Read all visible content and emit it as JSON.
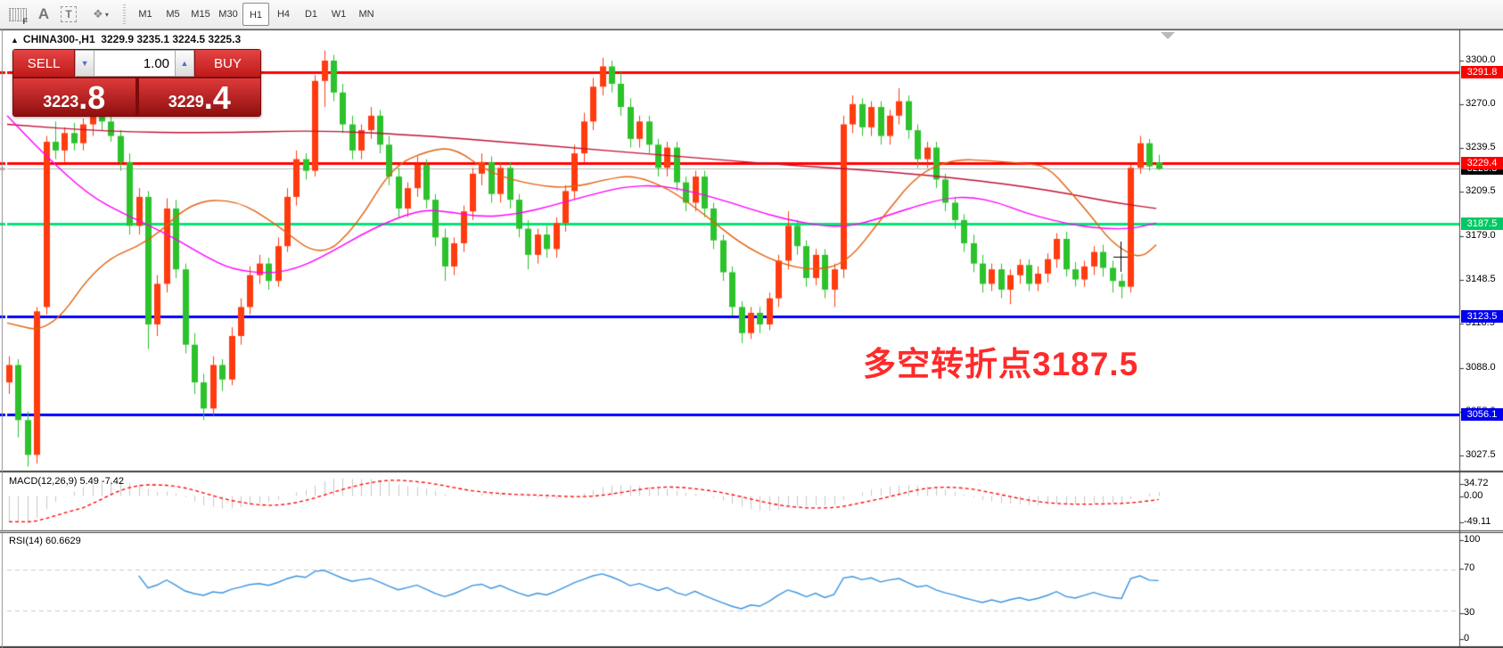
{
  "toolbar": {
    "tools": [
      {
        "name": "grid-f-tool",
        "label": "F"
      },
      {
        "name": "text-label-tool",
        "label": "A"
      },
      {
        "name": "text-box-tool",
        "label": "T"
      },
      {
        "name": "shapes-tool",
        "label": "❖",
        "caret": "▾"
      }
    ],
    "timeframes": [
      {
        "label": "M1",
        "active": false
      },
      {
        "label": "M5",
        "active": false
      },
      {
        "label": "M15",
        "active": false
      },
      {
        "label": "M30",
        "active": false
      },
      {
        "label": "H1",
        "active": true
      },
      {
        "label": "H4",
        "active": false
      },
      {
        "label": "D1",
        "active": false
      },
      {
        "label": "W1",
        "active": false
      },
      {
        "label": "MN",
        "active": false
      }
    ]
  },
  "chart": {
    "title": {
      "collapse_arrow": "▲",
      "symbol_period": "CHINA300-,H1",
      "ohlc": "3229.9 3235.1 3224.5 3225.3"
    },
    "trade_panel": {
      "sell_label": "SELL",
      "buy_label": "BUY",
      "volume": "1.00",
      "spinner_down": "▼",
      "spinner_up": "▲",
      "sell_price_main": "3223",
      "sell_price_big": ".8",
      "buy_price_main": "3229",
      "buy_price_big": ".4"
    },
    "annotation": {
      "text": "多空转折点3187.5",
      "color": "#ff2a2a"
    }
  },
  "macd": {
    "label": "MACD(12,26,9) 5.49 -7.42",
    "ticks": [
      "34.72",
      "0.00",
      "-49.11"
    ]
  },
  "rsi": {
    "label": "RSI(14) 60.6629",
    "ticks": [
      "100",
      "70",
      "30",
      "0"
    ]
  },
  "colors": {
    "candle_up": "#ff3b0f",
    "candle_down": "#2cc22c",
    "ma_slow": "#c11236",
    "ma_mid": "#ff00ff",
    "ma_fast": "#e2610c",
    "line_red": "#ff0000",
    "line_green": "#00e676",
    "line_blue": "#0000ff",
    "line_gray": "#b9b9b9",
    "badge_black": "#000000",
    "macd_hist": "#c8c8c8",
    "macd_signal": "#ff0000",
    "rsi_line": "#3b94e0",
    "rsi_level": "#cccccc"
  },
  "chart_data": {
    "type": "candlestick",
    "symbol": "CHINA300-",
    "period": "H1",
    "price_axis_ticks": [
      3300.0,
      3270.0,
      3239.5,
      3209.5,
      3179.0,
      3148.5,
      3118.5,
      3088.0,
      3058.0,
      3027.5
    ],
    "ylim": [
      3010,
      3310
    ],
    "levels": [
      {
        "price": 3225.3,
        "color": "#b9b9b9",
        "width": 1,
        "badge": "#000000"
      },
      {
        "price": 3291.8,
        "color": "#ff0000",
        "width": 3,
        "badge": "#ff0000"
      },
      {
        "price": 3229.4,
        "color": "#ff0000",
        "width": 3,
        "badge": "#ff0000"
      },
      {
        "price": 3187.5,
        "color": "#00e676",
        "width": 3,
        "badge": "#00c964"
      },
      {
        "price": 3123.5,
        "color": "#0000ff",
        "width": 3,
        "badge": "#0000ee"
      },
      {
        "price": 3056.1,
        "color": "#0000ff",
        "width": 3,
        "badge": "#0000ee"
      }
    ],
    "ohlc": [
      [
        3078,
        3096,
        3070,
        3090
      ],
      [
        3090,
        3094,
        3040,
        3052
      ],
      [
        3052,
        3058,
        3020,
        3028
      ],
      [
        3028,
        3130,
        3022,
        3127
      ],
      [
        3130,
        3248,
        3125,
        3244
      ],
      [
        3244,
        3258,
        3232,
        3238
      ],
      [
        3238,
        3254,
        3230,
        3250
      ],
      [
        3250,
        3257,
        3238,
        3243
      ],
      [
        3243,
        3260,
        3238,
        3256
      ],
      [
        3256,
        3266,
        3248,
        3262
      ],
      [
        3262,
        3270,
        3252,
        3258
      ],
      [
        3258,
        3265,
        3244,
        3248
      ],
      [
        3248,
        3252,
        3224,
        3230
      ],
      [
        3230,
        3236,
        3180,
        3186
      ],
      [
        3186,
        3212,
        3180,
        3206
      ],
      [
        3206,
        3210,
        3101,
        3118
      ],
      [
        3118,
        3152,
        3110,
        3146
      ],
      [
        3146,
        3205,
        3140,
        3198
      ],
      [
        3198,
        3204,
        3150,
        3156
      ],
      [
        3156,
        3160,
        3098,
        3104
      ],
      [
        3104,
        3112,
        3070,
        3078
      ],
      [
        3078,
        3084,
        3052,
        3060
      ],
      [
        3060,
        3096,
        3055,
        3090
      ],
      [
        3090,
        3094,
        3072,
        3080
      ],
      [
        3080,
        3116,
        3076,
        3110
      ],
      [
        3110,
        3136,
        3104,
        3130
      ],
      [
        3130,
        3158,
        3125,
        3152
      ],
      [
        3152,
        3166,
        3146,
        3160
      ],
      [
        3160,
        3164,
        3142,
        3148
      ],
      [
        3148,
        3178,
        3144,
        3172
      ],
      [
        3172,
        3212,
        3168,
        3206
      ],
      [
        3206,
        3238,
        3200,
        3232
      ],
      [
        3232,
        3236,
        3218,
        3224
      ],
      [
        3224,
        3290,
        3220,
        3286
      ],
      [
        3286,
        3307,
        3268,
        3300
      ],
      [
        3300,
        3304,
        3272,
        3278
      ],
      [
        3278,
        3284,
        3250,
        3256
      ],
      [
        3256,
        3262,
        3232,
        3238
      ],
      [
        3238,
        3256,
        3232,
        3252
      ],
      [
        3252,
        3268,
        3246,
        3262
      ],
      [
        3262,
        3266,
        3236,
        3242
      ],
      [
        3242,
        3248,
        3214,
        3220
      ],
      [
        3220,
        3226,
        3192,
        3198
      ],
      [
        3198,
        3216,
        3192,
        3212
      ],
      [
        3212,
        3234,
        3206,
        3228
      ],
      [
        3228,
        3232,
        3198,
        3204
      ],
      [
        3204,
        3208,
        3172,
        3178
      ],
      [
        3178,
        3184,
        3148,
        3158
      ],
      [
        3158,
        3178,
        3152,
        3174
      ],
      [
        3174,
        3200,
        3168,
        3196
      ],
      [
        3196,
        3226,
        3190,
        3222
      ],
      [
        3222,
        3236,
        3214,
        3230
      ],
      [
        3230,
        3234,
        3202,
        3208
      ],
      [
        3208,
        3230,
        3202,
        3226
      ],
      [
        3226,
        3230,
        3198,
        3204
      ],
      [
        3204,
        3208,
        3178,
        3184
      ],
      [
        3184,
        3190,
        3156,
        3166
      ],
      [
        3166,
        3184,
        3160,
        3180
      ],
      [
        3180,
        3186,
        3164,
        3170
      ],
      [
        3170,
        3192,
        3164,
        3188
      ],
      [
        3188,
        3214,
        3182,
        3210
      ],
      [
        3210,
        3242,
        3204,
        3236
      ],
      [
        3236,
        3264,
        3230,
        3258
      ],
      [
        3258,
        3288,
        3252,
        3282
      ],
      [
        3282,
        3302,
        3276,
        3296
      ],
      [
        3296,
        3300,
        3278,
        3284
      ],
      [
        3284,
        3292,
        3262,
        3268
      ],
      [
        3268,
        3274,
        3240,
        3246
      ],
      [
        3246,
        3262,
        3240,
        3258
      ],
      [
        3258,
        3262,
        3236,
        3242
      ],
      [
        3242,
        3246,
        3220,
        3226
      ],
      [
        3226,
        3244,
        3220,
        3240
      ],
      [
        3240,
        3244,
        3210,
        3216
      ],
      [
        3216,
        3220,
        3196,
        3202
      ],
      [
        3202,
        3224,
        3196,
        3220
      ],
      [
        3220,
        3224,
        3192,
        3198
      ],
      [
        3198,
        3202,
        3170,
        3176
      ],
      [
        3176,
        3180,
        3148,
        3154
      ],
      [
        3154,
        3158,
        3124,
        3130
      ],
      [
        3130,
        3134,
        3105,
        3112
      ],
      [
        3112,
        3130,
        3108,
        3126
      ],
      [
        3126,
        3130,
        3112,
        3118
      ],
      [
        3118,
        3140,
        3114,
        3136
      ],
      [
        3136,
        3166,
        3130,
        3162
      ],
      [
        3162,
        3196,
        3156,
        3186
      ],
      [
        3186,
        3190,
        3166,
        3172
      ],
      [
        3172,
        3176,
        3144,
        3150
      ],
      [
        3150,
        3170,
        3145,
        3166
      ],
      [
        3166,
        3170,
        3136,
        3142
      ],
      [
        3142,
        3160,
        3130,
        3156
      ],
      [
        3156,
        3262,
        3150,
        3256
      ],
      [
        3256,
        3276,
        3250,
        3270
      ],
      [
        3270,
        3274,
        3248,
        3254
      ],
      [
        3254,
        3272,
        3248,
        3268
      ],
      [
        3268,
        3272,
        3242,
        3248
      ],
      [
        3248,
        3266,
        3242,
        3262
      ],
      [
        3262,
        3281,
        3256,
        3272
      ],
      [
        3272,
        3276,
        3246,
        3252
      ],
      [
        3252,
        3256,
        3226,
        3232
      ],
      [
        3232,
        3244,
        3226,
        3240
      ],
      [
        3240,
        3244,
        3212,
        3218
      ],
      [
        3218,
        3222,
        3196,
        3202
      ],
      [
        3202,
        3206,
        3184,
        3190
      ],
      [
        3190,
        3194,
        3168,
        3174
      ],
      [
        3174,
        3180,
        3154,
        3160
      ],
      [
        3160,
        3166,
        3140,
        3146
      ],
      [
        3146,
        3160,
        3141,
        3156
      ],
      [
        3156,
        3160,
        3136,
        3142
      ],
      [
        3142,
        3156,
        3132,
        3152
      ],
      [
        3152,
        3163,
        3146,
        3159
      ],
      [
        3159,
        3163,
        3141,
        3146
      ],
      [
        3146,
        3158,
        3141,
        3153
      ],
      [
        3153,
        3167,
        3147,
        3163
      ],
      [
        3163,
        3181,
        3157,
        3177
      ],
      [
        3177,
        3182,
        3151,
        3156
      ],
      [
        3156,
        3161,
        3144,
        3149
      ],
      [
        3149,
        3162,
        3144,
        3158
      ],
      [
        3158,
        3172,
        3152,
        3168
      ],
      [
        3168,
        3173,
        3151,
        3157
      ],
      [
        3157,
        3162,
        3140,
        3148
      ],
      [
        3148,
        3153,
        3136,
        3144
      ],
      [
        3144,
        3228,
        3140,
        3226
      ],
      [
        3226,
        3248,
        3222,
        3243
      ],
      [
        3243,
        3246,
        3224,
        3227
      ],
      [
        3229.9,
        3235.1,
        3224.5,
        3225.3
      ]
    ],
    "ma_slow_points": [
      [
        8,
        3256
      ],
      [
        120,
        3251
      ],
      [
        240,
        3250
      ],
      [
        360,
        3252
      ],
      [
        480,
        3248
      ],
      [
        560,
        3244
      ],
      [
        640,
        3240
      ],
      [
        720,
        3236
      ],
      [
        800,
        3232
      ],
      [
        880,
        3228
      ],
      [
        960,
        3225
      ],
      [
        1040,
        3221
      ],
      [
        1100,
        3217
      ],
      [
        1150,
        3213
      ],
      [
        1200,
        3208
      ],
      [
        1250,
        3202
      ],
      [
        1297,
        3198
      ]
    ],
    "ma_mid_points": [
      [
        8,
        3262
      ],
      [
        50,
        3235
      ],
      [
        100,
        3207
      ],
      [
        140,
        3194
      ],
      [
        165,
        3187
      ],
      [
        200,
        3176
      ],
      [
        230,
        3165
      ],
      [
        260,
        3156
      ],
      [
        300,
        3153
      ],
      [
        330,
        3156
      ],
      [
        360,
        3164
      ],
      [
        420,
        3185
      ],
      [
        470,
        3197
      ],
      [
        500,
        3196
      ],
      [
        540,
        3192
      ],
      [
        580,
        3194
      ],
      [
        620,
        3200
      ],
      [
        660,
        3207
      ],
      [
        700,
        3213
      ],
      [
        740,
        3214
      ],
      [
        780,
        3209
      ],
      [
        820,
        3202
      ],
      [
        860,
        3194
      ],
      [
        900,
        3188
      ],
      [
        940,
        3185
      ],
      [
        970,
        3188
      ],
      [
        1000,
        3194
      ],
      [
        1030,
        3200
      ],
      [
        1060,
        3205
      ],
      [
        1090,
        3206
      ],
      [
        1120,
        3202
      ],
      [
        1150,
        3195
      ],
      [
        1180,
        3190
      ],
      [
        1210,
        3186
      ],
      [
        1240,
        3184
      ],
      [
        1270,
        3184
      ],
      [
        1297,
        3188
      ]
    ],
    "ma_fast_points": [
      [
        8,
        3119
      ],
      [
        56,
        3112
      ],
      [
        111,
        3161
      ],
      [
        168,
        3175
      ],
      [
        215,
        3203
      ],
      [
        265,
        3204
      ],
      [
        308,
        3188
      ],
      [
        360,
        3163
      ],
      [
        400,
        3186
      ],
      [
        440,
        3227
      ],
      [
        480,
        3238
      ],
      [
        510,
        3240
      ],
      [
        550,
        3222
      ],
      [
        600,
        3214
      ],
      [
        640,
        3212
      ],
      [
        680,
        3218
      ],
      [
        710,
        3221
      ],
      [
        750,
        3212
      ],
      [
        790,
        3194
      ],
      [
        830,
        3174
      ],
      [
        870,
        3161
      ],
      [
        910,
        3155
      ],
      [
        950,
        3160
      ],
      [
        990,
        3192
      ],
      [
        1030,
        3222
      ],
      [
        1070,
        3232
      ],
      [
        1110,
        3231
      ],
      [
        1150,
        3229
      ],
      [
        1175,
        3227
      ],
      [
        1200,
        3210
      ],
      [
        1225,
        3192
      ],
      [
        1245,
        3176
      ],
      [
        1268,
        3166
      ],
      [
        1283,
        3165
      ],
      [
        1297,
        3173
      ]
    ],
    "macd": {
      "params": [
        12,
        26,
        9
      ],
      "value_main": 5.49,
      "value_signal": -7.42,
      "axis_max": 34.72,
      "axis_min": -49.11
    },
    "rsi": {
      "period": 14,
      "value": 60.6629,
      "levels": [
        70,
        30
      ]
    },
    "crosshair": {
      "x": 1257,
      "y": 288
    }
  }
}
